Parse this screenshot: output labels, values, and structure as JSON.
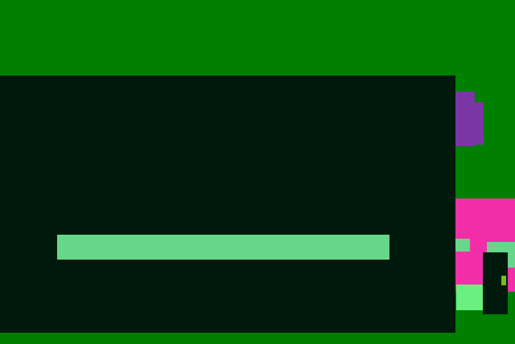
{
  "scene": {
    "colors": {
      "background": "#007f00",
      "panel": "#00190d",
      "bar": "#68d68a",
      "purple": "#7a36a4",
      "magenta": "#f22ea8",
      "mint": "#68d68a",
      "bright_green": "#6af07f",
      "dot": "#6dc11d"
    }
  }
}
